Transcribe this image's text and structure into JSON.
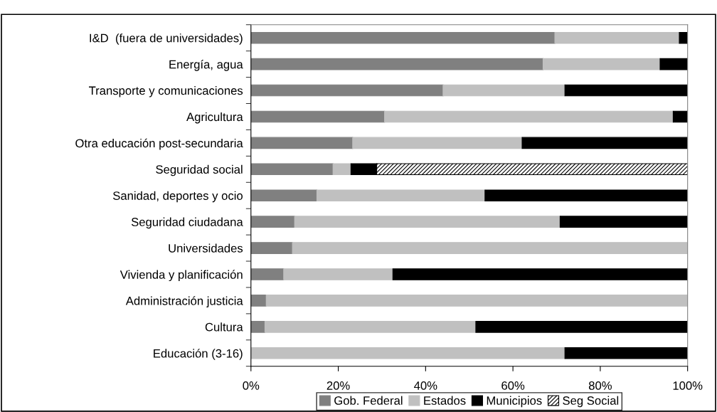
{
  "chart_data": {
    "type": "bar",
    "orientation": "horizontal",
    "stacked": true,
    "categories": [
      "I&D  (fuera de universidades)",
      "Energía, agua",
      "Transporte y comunicaciones",
      "Agricultura",
      "Otra educación post-secundaria",
      "Seguridad social",
      "Sanidad, deportes y ocio",
      "Seguridad ciudadana",
      "Universidades",
      "Vivienda y planificación",
      "Administración justicia",
      "Cultura",
      "Educación (3-16)"
    ],
    "series": [
      {
        "name": "Gob. Federal",
        "color": "#808080",
        "values": [
          69.6,
          66.9,
          44.0,
          30.6,
          23.3,
          18.8,
          15.1,
          10.0,
          9.5,
          7.5,
          3.5,
          3.2,
          0
        ]
      },
      {
        "name": "Estados",
        "color": "#c0c0c0",
        "values": [
          28.5,
          26.8,
          27.9,
          66.1,
          38.8,
          4.1,
          38.5,
          60.8,
          90.5,
          25.0,
          96.5,
          48.3,
          71.9
        ]
      },
      {
        "name": "Municipios",
        "color": "#000000",
        "values": [
          1.9,
          6.3,
          28.1,
          3.3,
          37.9,
          5.9,
          46.4,
          29.2,
          0,
          67.5,
          0,
          48.5,
          28.1
        ]
      },
      {
        "name": "Seg Social",
        "color": "#000000",
        "values": [
          0,
          0,
          0,
          0,
          0,
          71.2,
          0,
          0,
          0,
          0,
          0,
          0,
          0
        ]
      }
    ],
    "xlim": [
      0,
      100
    ],
    "xticks": [
      {
        "value": 0,
        "label": "0%"
      },
      {
        "value": 20,
        "label": "20%"
      },
      {
        "value": 40,
        "label": "40%"
      },
      {
        "value": 60,
        "label": "60%"
      },
      {
        "value": 80,
        "label": "80%"
      },
      {
        "value": 100,
        "label": "100%"
      }
    ],
    "grid": false,
    "legend": "bottom"
  }
}
